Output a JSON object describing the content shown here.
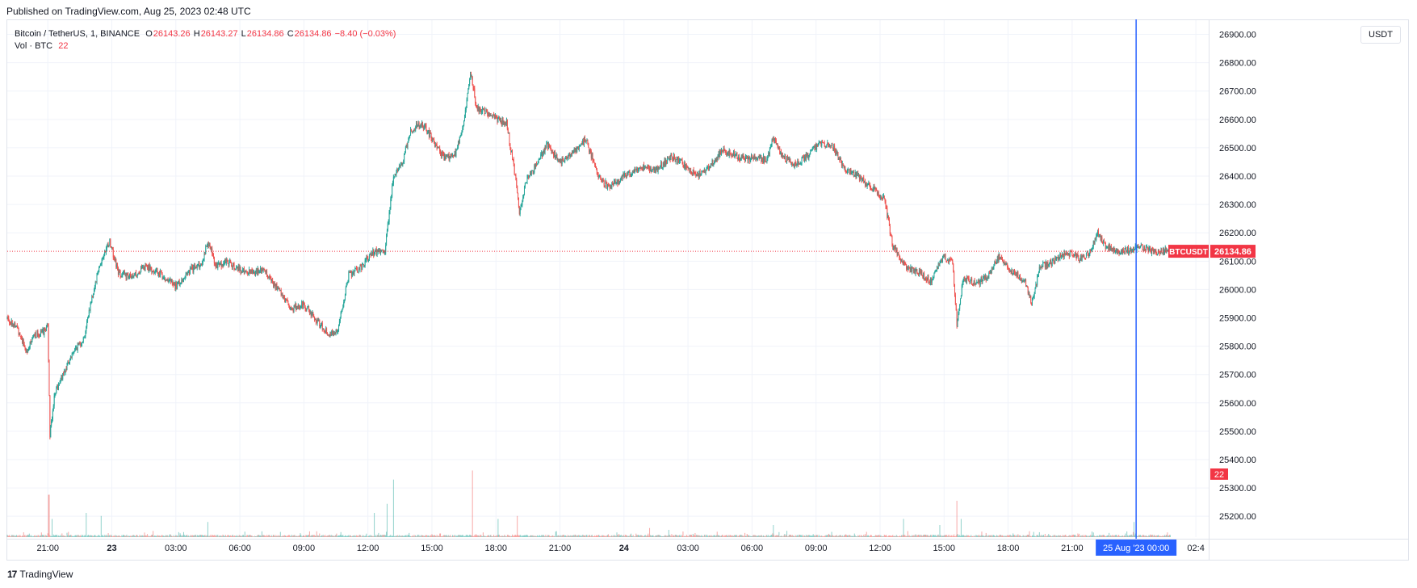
{
  "header": {
    "published": "Published on TradingView.com, Aug 25, 2023 02:48 UTC"
  },
  "legend": {
    "symbol": "Bitcoin / TetherUS, 1, BINANCE",
    "o_label": "O",
    "o_value": "26143.26",
    "h_label": "H",
    "h_value": "26143.27",
    "l_label": "L",
    "l_value": "26134.86",
    "c_label": "C",
    "c_value": "26134.86",
    "change": "−8.40 (−0.03%)",
    "vol_label": "Vol · BTC",
    "vol_value": "22"
  },
  "currency_button": "USDT",
  "footer": {
    "brand": "TradingView",
    "logo": "17"
  },
  "colors": {
    "up": "#26a69a",
    "down": "#ef5350",
    "crosshair": "#2962ff",
    "price_tag": "#f23645",
    "grid": "#f0f3fa"
  },
  "chart_data": {
    "type": "candlestick",
    "title": "Bitcoin / TetherUS, 1, BINANCE",
    "symbol": "BTCUSDT",
    "last_price": 26134.86,
    "last_price_label": "26134.86",
    "volume_label": "22",
    "crosshair_label": "25 Aug '23   00:00",
    "ylim": [
      25135,
      26950
    ],
    "y_ticks": [
      "26900.00",
      "26800.00",
      "26700.00",
      "26600.00",
      "26500.00",
      "26400.00",
      "26300.00",
      "26200.00",
      "26100.00",
      "26000.00",
      "25900.00",
      "25800.00",
      "25700.00",
      "25600.00",
      "25500.00",
      "25400.00",
      "25300.00",
      "25200.00"
    ],
    "x_ticks": [
      "21:00",
      "23",
      "03:00",
      "06:00",
      "09:00",
      "12:00",
      "15:00",
      "18:00",
      "21:00",
      "24",
      "03:00",
      "06:00",
      "09:00",
      "12:00",
      "15:00",
      "18:00",
      "21:00",
      "02:4"
    ],
    "x_hours": [
      0,
      3,
      6,
      9,
      12,
      15,
      18,
      21,
      24,
      27,
      30,
      33,
      36,
      39,
      42,
      45,
      48,
      53.8
    ],
    "x_start_hour": -1.9,
    "x_end_hour": 54.4,
    "crosshair_hour": 51.0,
    "price_path": [
      [
        -1.9,
        25900
      ],
      [
        -1.4,
        25860
      ],
      [
        -1.0,
        25780
      ],
      [
        -0.6,
        25840
      ],
      [
        -0.2,
        25850
      ],
      [
        0.0,
        25880
      ],
      [
        0.1,
        25490
      ],
      [
        0.3,
        25620
      ],
      [
        0.7,
        25700
      ],
      [
        1.2,
        25780
      ],
      [
        1.7,
        25830
      ],
      [
        2.0,
        25950
      ],
      [
        2.4,
        26080
      ],
      [
        2.9,
        26170
      ],
      [
        3.3,
        26060
      ],
      [
        3.9,
        26040
      ],
      [
        4.6,
        26080
      ],
      [
        5.2,
        26060
      ],
      [
        6.0,
        26010
      ],
      [
        6.7,
        26070
      ],
      [
        7.2,
        26090
      ],
      [
        7.5,
        26170
      ],
      [
        7.9,
        26080
      ],
      [
        8.4,
        26100
      ],
      [
        9.2,
        26060
      ],
      [
        10.1,
        26070
      ],
      [
        10.7,
        26010
      ],
      [
        11.4,
        25930
      ],
      [
        12.0,
        25950
      ],
      [
        12.6,
        25890
      ],
      [
        13.2,
        25840
      ],
      [
        13.6,
        25860
      ],
      [
        14.1,
        26050
      ],
      [
        14.7,
        26080
      ],
      [
        15.2,
        26130
      ],
      [
        15.8,
        26140
      ],
      [
        16.2,
        26400
      ],
      [
        16.6,
        26440
      ],
      [
        17.0,
        26560
      ],
      [
        17.5,
        26590
      ],
      [
        18.1,
        26520
      ],
      [
        18.6,
        26460
      ],
      [
        19.1,
        26480
      ],
      [
        19.5,
        26590
      ],
      [
        19.8,
        26770
      ],
      [
        20.1,
        26640
      ],
      [
        20.5,
        26630
      ],
      [
        21.0,
        26600
      ],
      [
        21.5,
        26590
      ],
      [
        21.9,
        26400
      ],
      [
        22.1,
        26270
      ],
      [
        22.4,
        26380
      ],
      [
        22.9,
        26440
      ],
      [
        23.4,
        26510
      ],
      [
        24.0,
        26450
      ],
      [
        24.7,
        26490
      ],
      [
        25.2,
        26530
      ],
      [
        25.8,
        26400
      ],
      [
        26.3,
        26360
      ],
      [
        27.0,
        26400
      ],
      [
        27.8,
        26430
      ],
      [
        28.5,
        26420
      ],
      [
        29.2,
        26470
      ],
      [
        29.8,
        26440
      ],
      [
        30.4,
        26400
      ],
      [
        31.0,
        26430
      ],
      [
        31.6,
        26490
      ],
      [
        32.3,
        26470
      ],
      [
        33.1,
        26460
      ],
      [
        33.7,
        26460
      ],
      [
        34.0,
        26540
      ],
      [
        34.4,
        26470
      ],
      [
        35.0,
        26440
      ],
      [
        35.6,
        26470
      ],
      [
        36.2,
        26520
      ],
      [
        36.8,
        26500
      ],
      [
        37.4,
        26420
      ],
      [
        38.0,
        26400
      ],
      [
        38.6,
        26360
      ],
      [
        39.2,
        26320
      ],
      [
        39.6,
        26150
      ],
      [
        40.2,
        26080
      ],
      [
        40.8,
        26060
      ],
      [
        41.4,
        26030
      ],
      [
        42.0,
        26120
      ],
      [
        42.4,
        26090
      ],
      [
        42.6,
        25880
      ],
      [
        42.9,
        26040
      ],
      [
        43.5,
        26020
      ],
      [
        44.1,
        26050
      ],
      [
        44.6,
        26120
      ],
      [
        45.2,
        26060
      ],
      [
        45.8,
        26030
      ],
      [
        46.1,
        25950
      ],
      [
        46.5,
        26080
      ],
      [
        47.2,
        26100
      ],
      [
        47.8,
        26130
      ],
      [
        48.4,
        26110
      ],
      [
        48.8,
        26130
      ],
      [
        49.2,
        26200
      ],
      [
        49.6,
        26150
      ],
      [
        50.1,
        26130
      ],
      [
        50.6,
        26140
      ],
      [
        51.3,
        26150
      ],
      [
        52.0,
        26130
      ],
      [
        52.6,
        26140
      ]
    ],
    "volume_spikes": [
      [
        0.05,
        70
      ],
      [
        0.2,
        30
      ],
      [
        1.8,
        40
      ],
      [
        2.5,
        35
      ],
      [
        7.5,
        25
      ],
      [
        15.3,
        40
      ],
      [
        15.9,
        55
      ],
      [
        16.2,
        95
      ],
      [
        19.9,
        110
      ],
      [
        21.1,
        30
      ],
      [
        22.0,
        35
      ],
      [
        28.2,
        15
      ],
      [
        29.1,
        12
      ],
      [
        34.0,
        20
      ],
      [
        40.1,
        30
      ],
      [
        41.8,
        20
      ],
      [
        42.6,
        60
      ],
      [
        42.8,
        30
      ],
      [
        50.9,
        25
      ]
    ],
    "volume_max": 120
  }
}
